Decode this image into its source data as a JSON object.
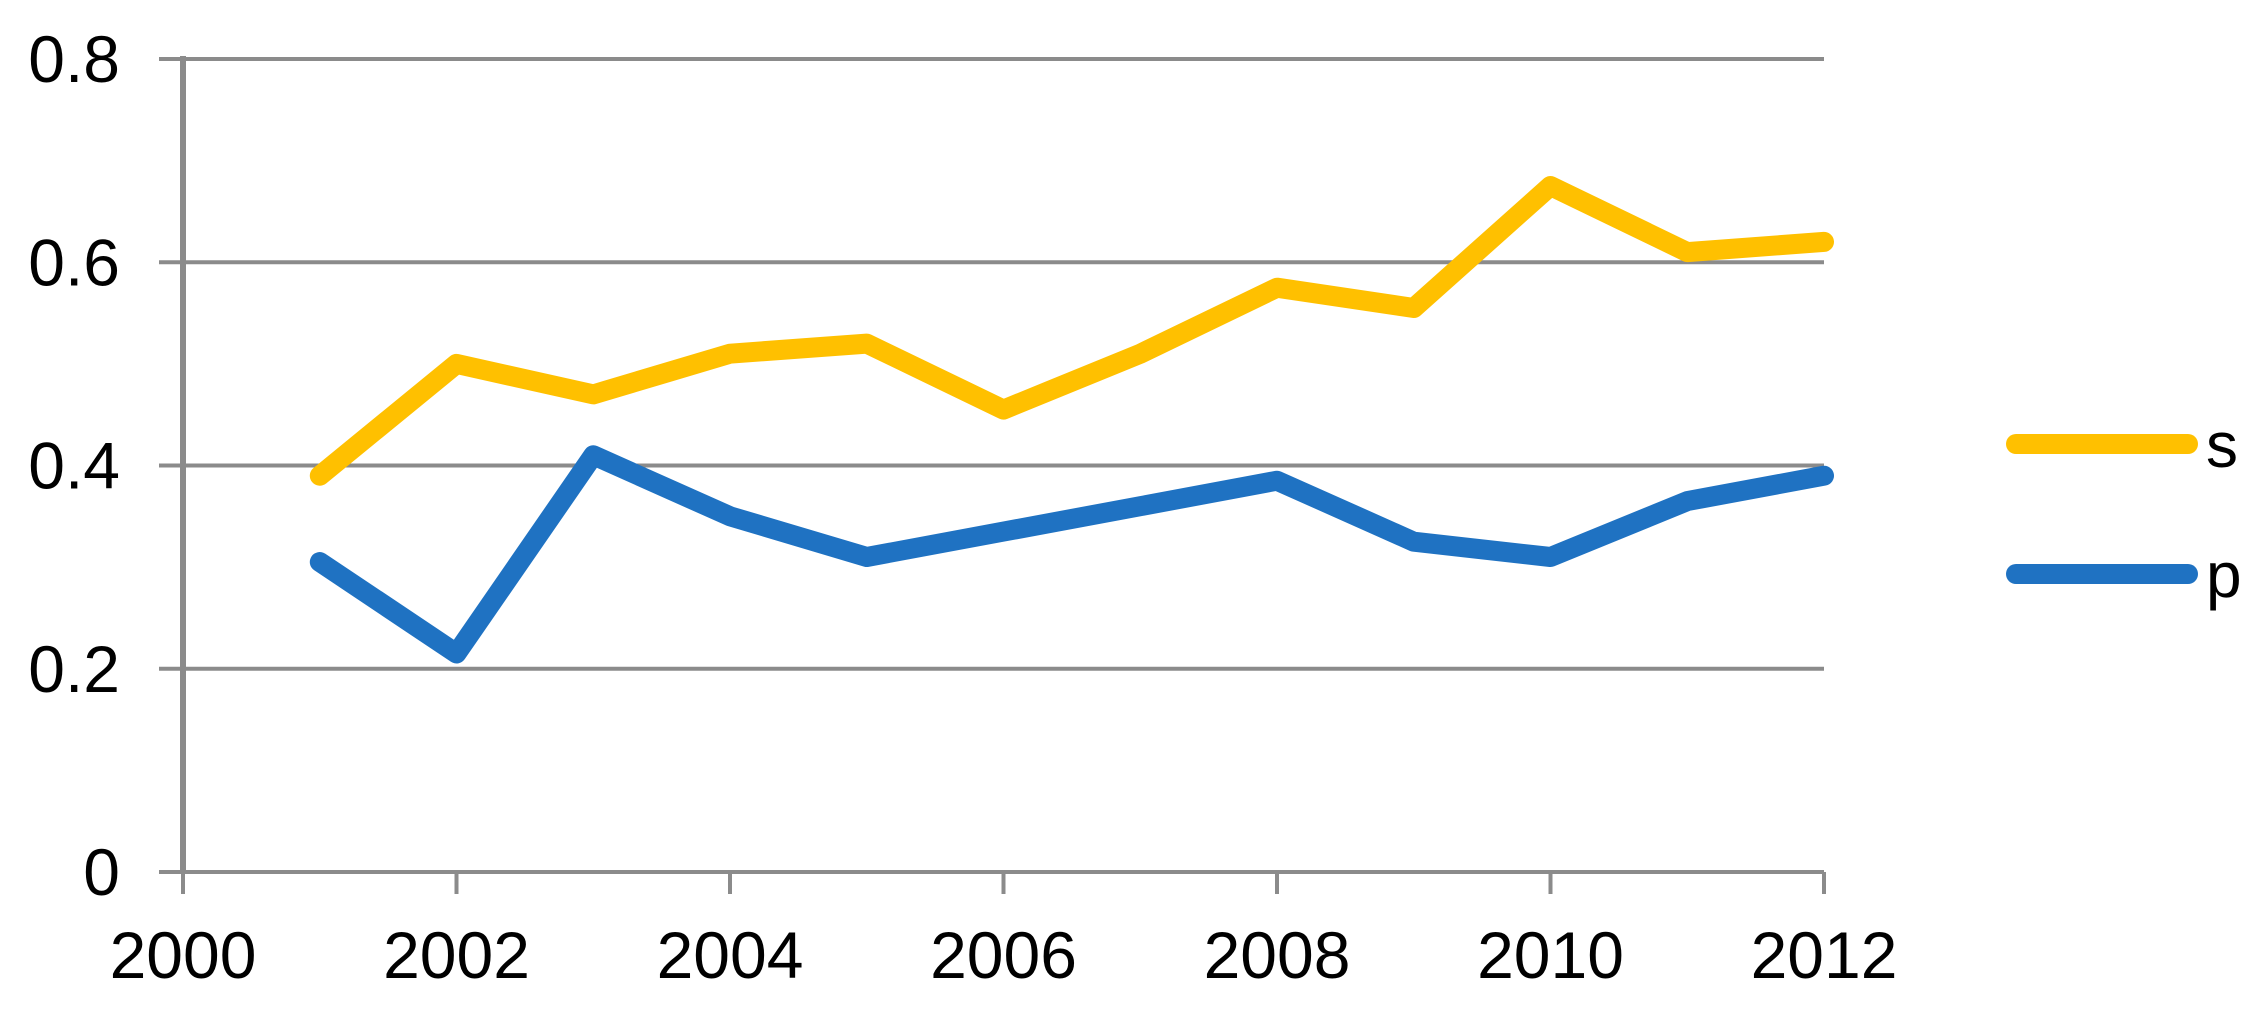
{
  "chart_data": {
    "type": "line",
    "x": [
      2001,
      2002,
      2003,
      2004,
      2005,
      2006,
      2007,
      2008,
      2009,
      2010,
      2011,
      2012
    ],
    "series": [
      {
        "name": "s",
        "color": "#FFC000",
        "values": [
          0.39,
          0.5,
          0.47,
          0.51,
          0.52,
          0.455,
          0.51,
          0.575,
          0.555,
          0.675,
          0.61,
          0.62
        ]
      },
      {
        "name": "p",
        "color": "#1F72C2",
        "values": [
          0.305,
          0.215,
          0.41,
          0.35,
          0.31,
          0.335,
          0.36,
          0.385,
          0.325,
          0.31,
          0.365,
          0.39
        ]
      }
    ],
    "title": "",
    "xlabel": "",
    "ylabel": "",
    "xlim": [
      2000,
      2012
    ],
    "ylim": [
      0,
      0.8
    ],
    "x_ticks": [
      2000,
      2002,
      2004,
      2006,
      2008,
      2010,
      2012
    ],
    "x_tick_labels": [
      "2000",
      "2002",
      "2004",
      "2006",
      "2008",
      "2010",
      "2012"
    ],
    "y_ticks": [
      0,
      0.2,
      0.4,
      0.6,
      0.8
    ],
    "y_tick_labels": [
      "0",
      "0.2",
      "0.4",
      "0.6",
      "0.8"
    ],
    "grid": "horizontal",
    "gridline_color": "#8B8B8B",
    "axis_color": "#8B8B8B",
    "text_color": "#000000",
    "background_color": "#FFFFFF",
    "line_width": 20,
    "legend_position": "right"
  },
  "legend": {
    "items": [
      {
        "label": "s",
        "color": "#FFC000"
      },
      {
        "label": "p",
        "color": "#1F72C2"
      }
    ]
  }
}
